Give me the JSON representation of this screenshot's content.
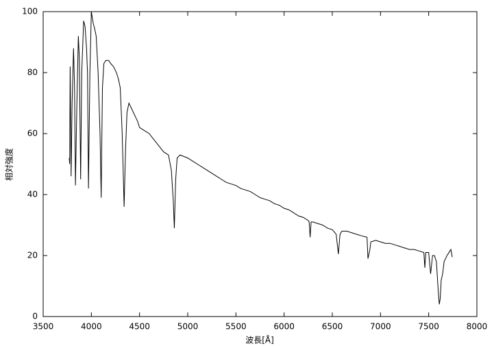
{
  "chart_data": {
    "type": "line",
    "xlabel": "波長[Å]",
    "ylabel": "相対強度",
    "color": "#000000",
    "x": [
      3770,
      3775,
      3780,
      3790,
      3800,
      3815,
      3825,
      3835,
      3850,
      3865,
      3875,
      3889,
      3900,
      3920,
      3935,
      3950,
      3960,
      3970,
      3985,
      4000,
      4010,
      4020,
      4030,
      4050,
      4070,
      4090,
      4102,
      4115,
      4130,
      4150,
      4180,
      4200,
      4230,
      4260,
      4280,
      4300,
      4320,
      4340,
      4355,
      4370,
      4390,
      4420,
      4450,
      4480,
      4500,
      4550,
      4600,
      4650,
      4700,
      4750,
      4800,
      4830,
      4850,
      4861,
      4875,
      4890,
      4920,
      4960,
      5000,
      5050,
      5100,
      5150,
      5200,
      5250,
      5300,
      5350,
      5400,
      5450,
      5500,
      5550,
      5600,
      5650,
      5700,
      5750,
      5800,
      5850,
      5900,
      5950,
      6000,
      6050,
      6100,
      6150,
      6200,
      6250,
      6260,
      6270,
      6280,
      6300,
      6350,
      6400,
      6450,
      6500,
      6540,
      6563,
      6580,
      6600,
      6650,
      6700,
      6750,
      6800,
      6860,
      6870,
      6890,
      6900,
      6950,
      7000,
      7050,
      7100,
      7150,
      7200,
      7250,
      7300,
      7350,
      7400,
      7450,
      7460,
      7470,
      7500,
      7520,
      7540,
      7560,
      7580,
      7600,
      7610,
      7620,
      7630,
      7645,
      7660,
      7690,
      7710,
      7730,
      7745
    ],
    "values": [
      52,
      50,
      82,
      46,
      70,
      88,
      76,
      43,
      70,
      92,
      85,
      45,
      80,
      97,
      95,
      88,
      80,
      42,
      80,
      100,
      98,
      96,
      95,
      92,
      80,
      60,
      39,
      75,
      83,
      84,
      84,
      83,
      82,
      80,
      78,
      75,
      60,
      36,
      55,
      67,
      70,
      68,
      66,
      64,
      62,
      61,
      60,
      58,
      56,
      54,
      53,
      48,
      38,
      29,
      45,
      52,
      53,
      52.5,
      52,
      51,
      50,
      49,
      48,
      47,
      46,
      45,
      44,
      43.5,
      43,
      42,
      41.5,
      41,
      40,
      39,
      38.5,
      38,
      37,
      36.5,
      35.5,
      35,
      34,
      33,
      32.5,
      31.5,
      31,
      26,
      31,
      31,
      30.5,
      30,
      29,
      28.5,
      27,
      20.5,
      27,
      28,
      28,
      27.5,
      27,
      26.5,
      26,
      19,
      22,
      24.5,
      25,
      24.5,
      24,
      24,
      23.5,
      23,
      22.5,
      22,
      22,
      21.5,
      21,
      16,
      21,
      21,
      14,
      20,
      20,
      18,
      8,
      4,
      6,
      12,
      14,
      18,
      20,
      21,
      22,
      19.5
    ],
    "xlim": [
      3500,
      8000
    ],
    "xticks": [
      3500,
      4000,
      4500,
      5000,
      5500,
      6000,
      6500,
      7000,
      7500,
      8000
    ],
    "ylim": [
      0,
      100
    ],
    "yticks": [
      0,
      20,
      40,
      60,
      80,
      100
    ]
  }
}
